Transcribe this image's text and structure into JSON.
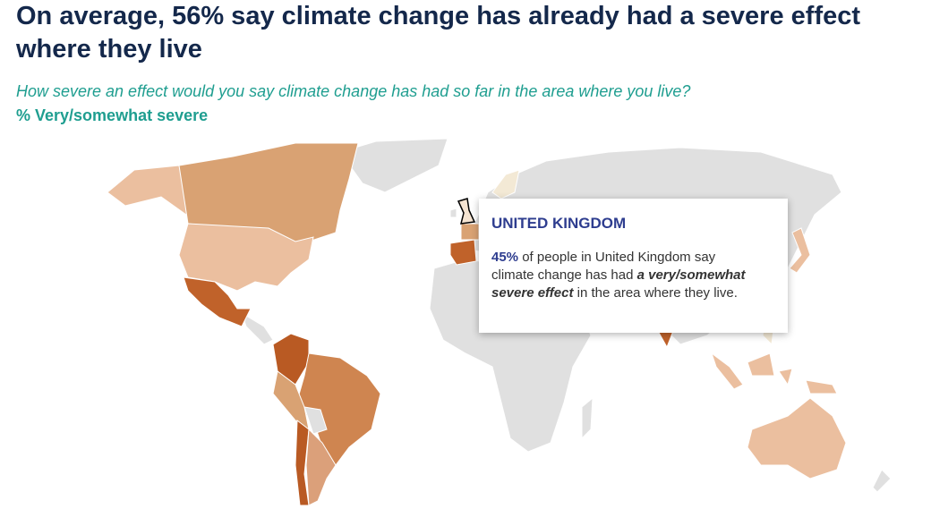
{
  "header": {
    "title": "On average, 56% say climate change has already had a severe effect where they live",
    "question": "How severe an effect would you say climate change has had so far in the area where you live?",
    "measure": "% Very/somewhat severe"
  },
  "tooltip": {
    "country": "UNITED KINGDOM",
    "value": "45%",
    "text_before": " of people in United Kingdom say climate change has had ",
    "emphasis": "a very/somewhat severe effect",
    "text_after": " in the area where they live."
  }
}
